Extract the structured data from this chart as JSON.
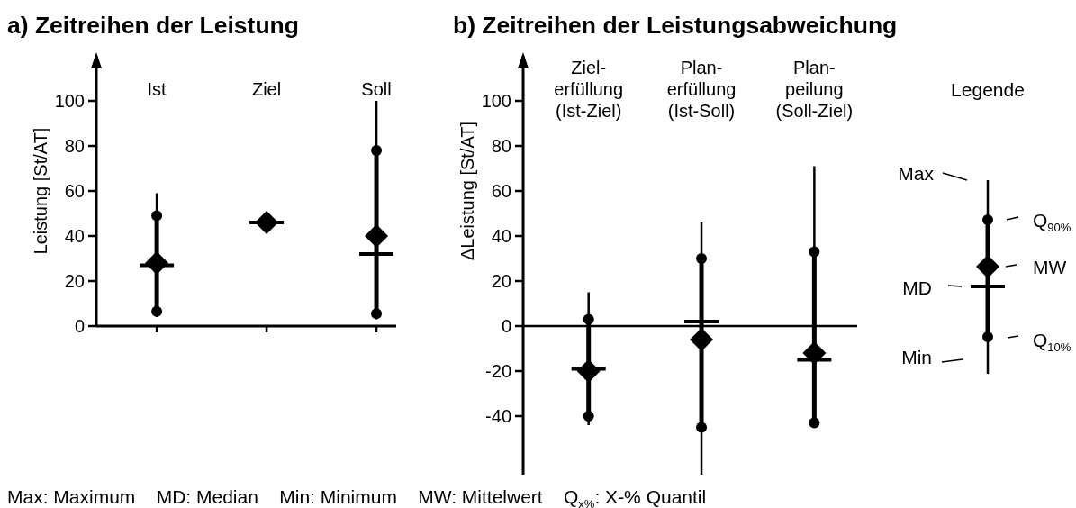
{
  "chart_data": [
    {
      "type": "box",
      "title": "a) Zeitreihen der Leistung",
      "ylabel": "Leistung [St/AT]",
      "categories": [
        "Ist",
        "Ziel",
        "Soll"
      ],
      "boxes": [
        {
          "low": 4,
          "q1": 6.5,
          "median": 27,
          "q3": 49,
          "high": 59,
          "mean": 28
        },
        {
          "low": 46,
          "q1": 46,
          "median": 46,
          "q3": 46,
          "high": 46,
          "mean": 46
        },
        {
          "low": 3,
          "q1": 5.5,
          "median": 32,
          "q3": 78,
          "high": 100,
          "mean": 40
        }
      ],
      "series": [
        {
          "type": "scatter",
          "x": [
            "Ist",
            "Ziel",
            "Soll"
          ],
          "values": [
            49,
            null,
            78
          ],
          "color": "#000000"
        },
        {
          "type": "scatter",
          "x": [
            "Ist",
            "Ziel",
            "Soll"
          ],
          "values": [
            6.5,
            null,
            5.5
          ],
          "color": "#000000"
        }
      ],
      "marker": "circle",
      "color": "#000000",
      "ylim": [
        0,
        120
      ],
      "yticks": [
        0,
        20,
        40,
        60,
        80,
        100
      ],
      "annotations": [
        "Max: Maximum    MD: Median    Min: Minimum    MW: Mittelwert    Q$_{x%}$: X-% Quantil"
      ]
    },
    {
      "type": "box",
      "title": "b) Zeitreihen der Leistungsabweichung",
      "ylabel": "ΔLeistung [St/AT]",
      "categories": [
        "Ziel-\nerfüllung\n(Ist-Ziel)",
        "Plan-\nerfüllung\n(Ist-Soll)",
        "Plan-\npeilung\n(Soll-Ziel)"
      ],
      "boxes": [
        {
          "low": -44,
          "q1": -40,
          "median": -19,
          "q3": 3,
          "high": 15,
          "mean": -20
        },
        {
          "low": -66,
          "q1": -45,
          "median": 2,
          "q3": 30,
          "high": 46,
          "mean": -6
        },
        {
          "low": -45,
          "q1": -43,
          "median": -15,
          "q3": 33,
          "high": 71,
          "mean": -12
        }
      ],
      "series": [
        {
          "type": "scatter",
          "x": [
            "Ziel-\nerfüllung\n(Ist-Ziel)",
            "Plan-\nerfüllung\n(Ist-Soll)",
            "Plan-\npeilung\n(Soll-Ziel)"
          ],
          "values": [
            3,
            30,
            33
          ],
          "color": "#000000"
        },
        {
          "type": "scatter",
          "x": [
            "Ziel-\nerfüllung\n(Ist-Ziel)",
            "Plan-\nerfüllung\n(Ist-Soll)",
            "Plan-\npeilung\n(Soll-Ziel)"
          ],
          "values": [
            -40,
            -45,
            -43
          ],
          "color": "#000000"
        }
      ],
      "marker": "circle",
      "color": "#000000",
      "ylim": [
        -66,
        120
      ],
      "yticks": [
        -40,
        -20,
        0,
        20,
        40,
        60,
        80,
        100
      ],
      "ref_lines": [
        {
          "axis": "y",
          "value": 0
        }
      ],
      "annotations": [
        "Legende",
        "Max",
        "Q$_{90%}$",
        "MW",
        "MD",
        "Q$_{10%}$",
        "Min"
      ]
    }
  ]
}
